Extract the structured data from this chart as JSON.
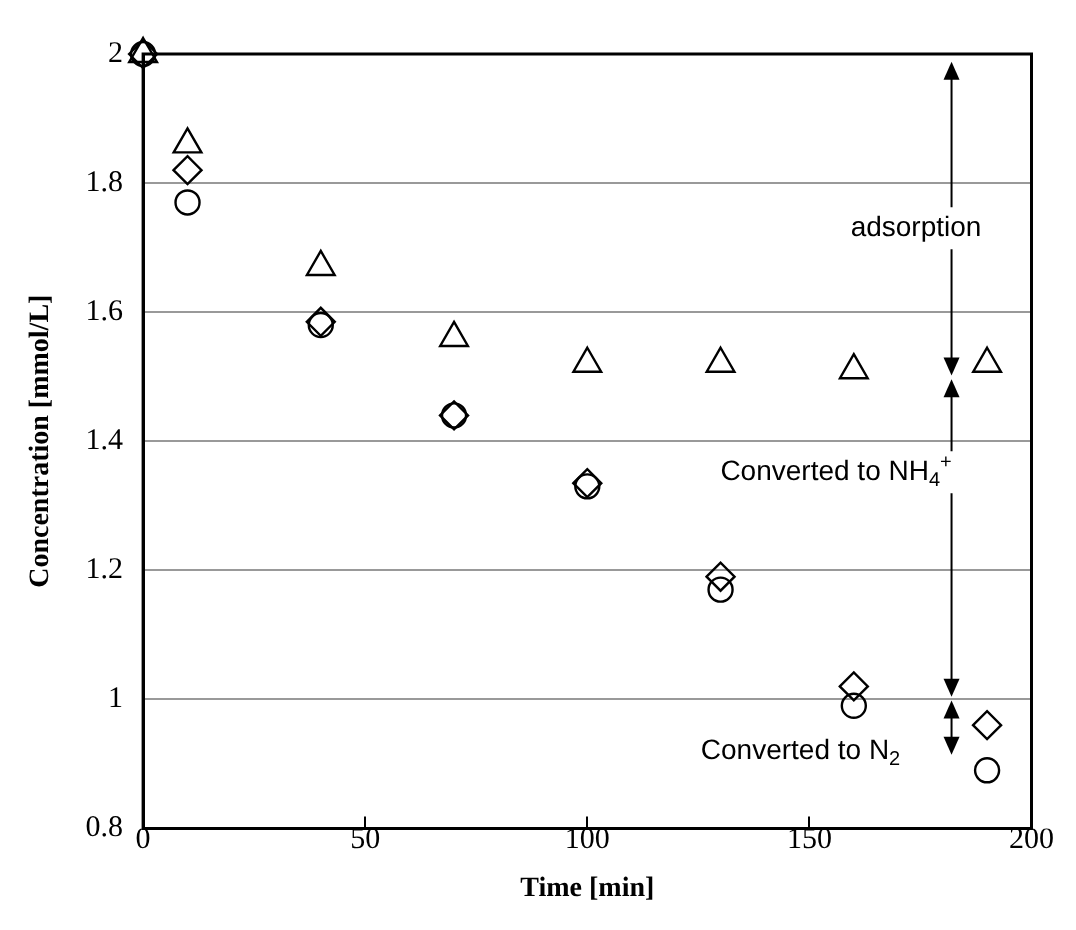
{
  "chart_data": {
    "type": "scatter",
    "xlabel": "Time [min]",
    "ylabel": "Concentration [mmol/L]",
    "x": [
      0,
      10,
      40,
      70,
      100,
      130,
      160,
      190
    ],
    "series": [
      {
        "color": "#000000",
        "values": [
          2,
          1.86,
          1.67,
          1.56,
          1.52,
          1.52,
          1.51,
          1.52
        ]
      },
      {
        "color": "#000000",
        "values": [
          2,
          1.82,
          1.585,
          1.44,
          1.335,
          1.19,
          1.02,
          0.96
        ]
      },
      {
        "color": "#000000",
        "values": [
          2,
          1.77,
          1.58,
          1.44,
          1.33,
          1.17,
          0.99,
          0.89
        ]
      }
    ],
    "xlim": [
      0,
      200
    ],
    "xticks": [
      0,
      50,
      100,
      150,
      200
    ],
    "ylim": [
      0.8,
      2
    ],
    "yticks": [
      0.8,
      1,
      1.2,
      1.4,
      1.6,
      1.8,
      2
    ],
    "grid": "y",
    "legend": false,
    "annotations": [
      "adsorption",
      "Converted to NH$_{4}$$^{+}$",
      "Converted to N$_{2}$"
    ]
  }
}
